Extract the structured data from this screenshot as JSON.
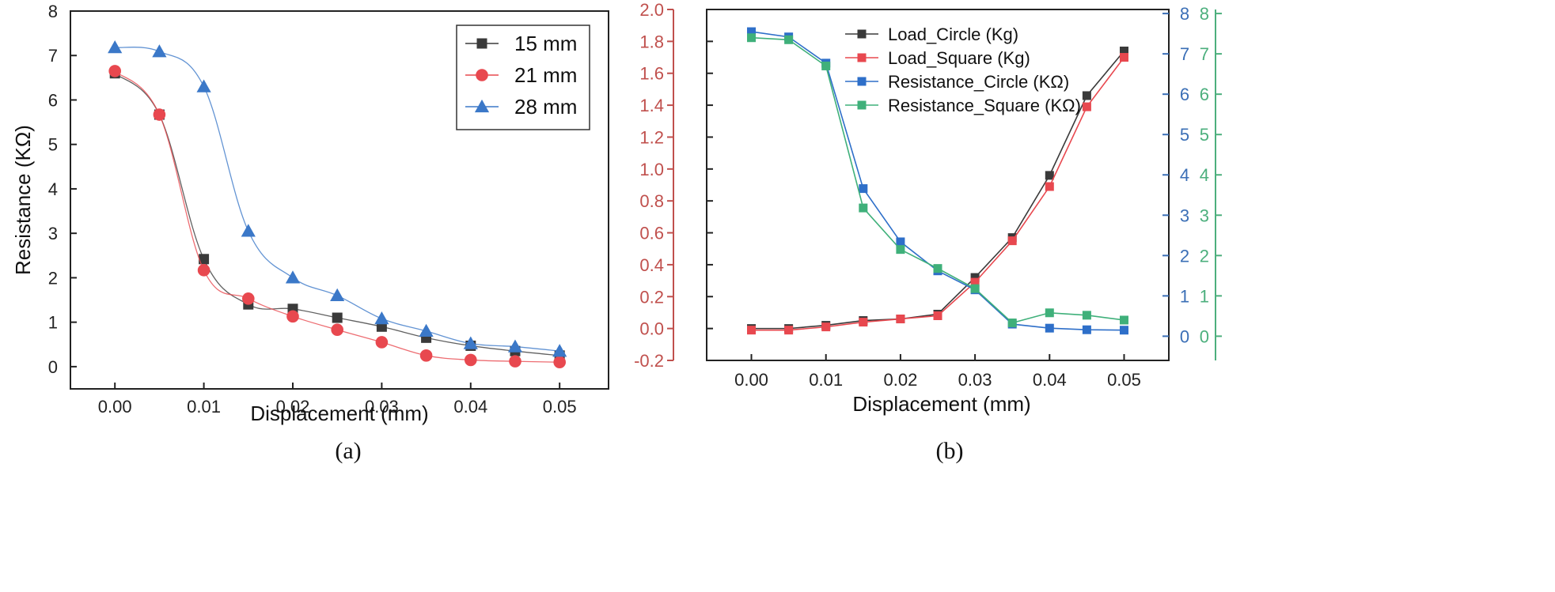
{
  "chart_data": [
    {
      "type": "line",
      "panel": "(a)",
      "xlabel": "Displacement (mm)",
      "ylabel": "Resistance (KΩ)",
      "xlim": [
        -0.005,
        0.0555
      ],
      "ylim": [
        -0.5,
        8
      ],
      "xticks": [
        "0.00",
        "0.01",
        "0.02",
        "0.03",
        "0.04",
        "0.05"
      ],
      "yticks": [
        "0",
        "1",
        "2",
        "3",
        "4",
        "5",
        "6",
        "7",
        "8"
      ],
      "x": [
        0.0,
        0.005,
        0.01,
        0.015,
        0.02,
        0.025,
        0.03,
        0.035,
        0.04,
        0.045,
        0.05
      ],
      "legend_position": "top-right",
      "series": [
        {
          "name": "15 mm",
          "color": "#3a3a3a",
          "marker": "square",
          "values": [
            6.6,
            5.67,
            2.42,
            1.4,
            1.3,
            1.1,
            0.9,
            0.65,
            0.47,
            0.35,
            0.25
          ]
        },
        {
          "name": "21 mm",
          "color": "#e8484f",
          "marker": "circle",
          "values": [
            6.65,
            5.67,
            2.17,
            1.53,
            1.13,
            0.83,
            0.55,
            0.25,
            0.15,
            0.12,
            0.1
          ]
        },
        {
          "name": "28 mm",
          "color": "#3b78c8",
          "marker": "triangle",
          "values": [
            7.18,
            7.09,
            6.3,
            3.05,
            2.0,
            1.6,
            1.08,
            0.8,
            0.52,
            0.45,
            0.35
          ]
        }
      ]
    },
    {
      "type": "line",
      "panel": "(b)",
      "xlabel": "Displacement (mm)",
      "xlim": [
        -0.006,
        0.056
      ],
      "xticks": [
        "0.00",
        "0.01",
        "0.02",
        "0.03",
        "0.04",
        "0.05"
      ],
      "left_axis": {
        "color": "#c0504d",
        "ylim": [
          -0.2,
          2.0
        ],
        "yticks": [
          "-0.2",
          "0.0",
          "0.2",
          "0.4",
          "0.6",
          "0.8",
          "1.0",
          "1.2",
          "1.4",
          "1.6",
          "1.8",
          "2.0"
        ]
      },
      "right_axis_1": {
        "color": "#3b6fb6",
        "ylim": [
          -0.6,
          8.1
        ],
        "yticks": [
          "0",
          "1",
          "2",
          "3",
          "4",
          "5",
          "6",
          "7",
          "8"
        ]
      },
      "right_axis_2": {
        "color": "#4caf7d",
        "ylim": [
          -0.6,
          8.1
        ],
        "yticks": [
          "0",
          "1",
          "2",
          "3",
          "4",
          "5",
          "6",
          "7",
          "8"
        ]
      },
      "x": [
        0.0,
        0.005,
        0.01,
        0.015,
        0.02,
        0.025,
        0.03,
        0.035,
        0.04,
        0.045,
        0.05
      ],
      "legend_position": "top-center",
      "series": [
        {
          "name": "Load_Circle (Kg)",
          "axis": "left",
          "color": "#3a3a3a",
          "values": [
            0.0,
            0.0,
            0.02,
            0.05,
            0.06,
            0.09,
            0.32,
            0.57,
            0.96,
            1.46,
            1.74
          ]
        },
        {
          "name": "Load_Square (Kg)",
          "axis": "left",
          "color": "#e8484f",
          "values": [
            -0.01,
            -0.01,
            0.01,
            0.04,
            0.06,
            0.08,
            0.29,
            0.55,
            0.89,
            1.39,
            1.7
          ]
        },
        {
          "name": "Resistance_Circle (KΩ)",
          "axis": "right1",
          "color": "#2e6fc9",
          "values": [
            7.55,
            7.42,
            6.77,
            3.66,
            2.34,
            1.62,
            1.15,
            0.3,
            0.2,
            0.16,
            0.15
          ]
        },
        {
          "name": "Resistance_Square (KΩ)",
          "axis": "right2",
          "color": "#3fb07a",
          "values": [
            7.4,
            7.35,
            6.7,
            3.18,
            2.15,
            1.68,
            1.18,
            0.33,
            0.58,
            0.52,
            0.4
          ]
        }
      ]
    }
  ],
  "captions": {
    "a": "(a)",
    "b": "(b)"
  }
}
